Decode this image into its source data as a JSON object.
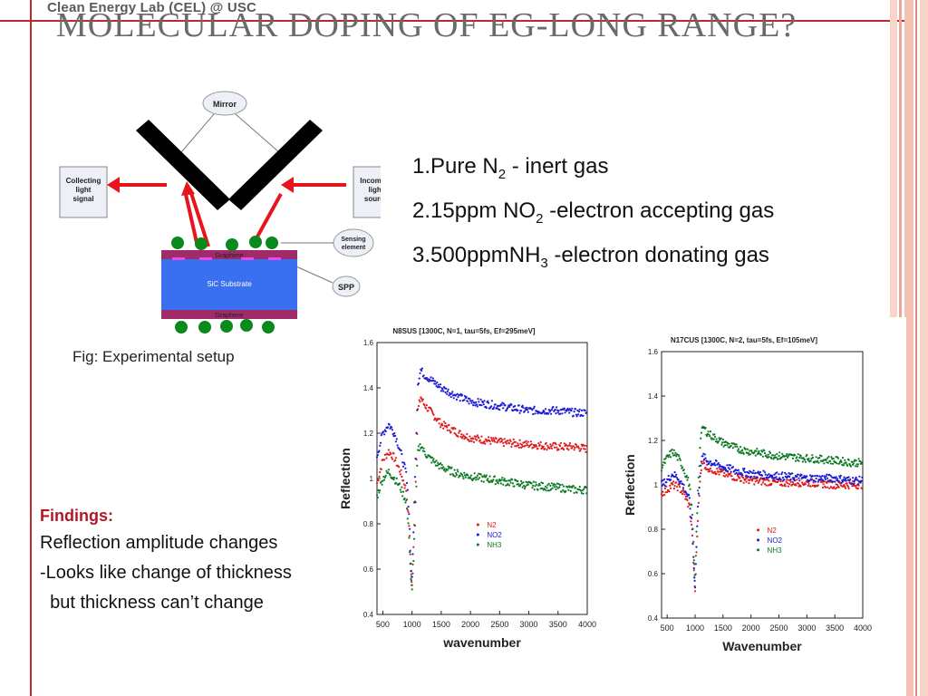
{
  "slide": {
    "header_note": "Clean Energy Lab (CEL) @ USC",
    "title": "MOLECULAR DOPING  OF EG-LONG RANGE?",
    "figure_caption": "Fig: Experimental setup",
    "colors": {
      "accent": "#c0272d",
      "stripe_light": "#f7d5c9"
    }
  },
  "setup_diagram": {
    "mirror_label": "Mirror",
    "collecting_label": [
      "Collecting",
      "light",
      "signal"
    ],
    "incoming_label": [
      "Incoming",
      "light",
      "source"
    ],
    "sensing_label": [
      "Sensing",
      "element"
    ],
    "spp_label": "SPP",
    "graphene_top": "Graphene",
    "graphene_bottom": "Graphene",
    "substrate": "SiC Substrate",
    "colors": {
      "beam": "#e8141b",
      "mirror": "#000000",
      "substrate": "#3a6ff0",
      "graphene": "#a02a6a",
      "molecule": "#0a8a1c"
    }
  },
  "gases": [
    {
      "num": "1.",
      "pre": "Pure N",
      "sub": "2",
      "post": " - inert gas"
    },
    {
      "num": "2.",
      "pre": "15ppm NO",
      "sub": "2",
      "post": " -electron accepting gas"
    },
    {
      "num": "3.",
      "pre": "500ppmNH",
      "sub": "3",
      "post": " -electron donating gas"
    }
  ],
  "findings": {
    "heading": "Findings:",
    "lines": [
      "Reflection amplitude changes",
      "-Looks like change of thickness",
      "  but thickness can’t change"
    ]
  },
  "chart_data": [
    {
      "type": "scatter",
      "title": "N8SUS [1300C, N=1, tau=5fs, Ef=295meV]",
      "xlabel": "wavenumber",
      "ylabel": "Reflection",
      "xlim": [
        400,
        4000
      ],
      "ylim": [
        0.4,
        1.6
      ],
      "xticks": [
        500,
        1000,
        1500,
        2000,
        2500,
        3000,
        3500,
        4000
      ],
      "yticks": [
        0.4,
        0.6,
        0.8,
        1,
        1.2,
        1.4,
        1.6
      ],
      "legend_position": "right-center",
      "series": [
        {
          "name": "N2",
          "color": "#e01b1b",
          "x": [
            400,
            500,
            600,
            700,
            800,
            900,
            950,
            980,
            1000,
            1050,
            1100,
            1150,
            1200,
            1300,
            1500,
            1800,
            2000,
            2500,
            3000,
            3500,
            3800,
            4000
          ],
          "y": [
            0.98,
            1.08,
            1.12,
            1.09,
            1.03,
            0.95,
            0.8,
            0.6,
            0.52,
            0.9,
            1.3,
            1.36,
            1.33,
            1.3,
            1.24,
            1.2,
            1.18,
            1.16,
            1.15,
            1.14,
            1.14,
            1.13
          ]
        },
        {
          "name": "NO2",
          "color": "#1a1ad6",
          "x": [
            400,
            500,
            600,
            700,
            800,
            900,
            950,
            980,
            1000,
            1050,
            1100,
            1150,
            1200,
            1300,
            1500,
            1800,
            2000,
            2500,
            3000,
            3500,
            3800,
            4000
          ],
          "y": [
            1.1,
            1.2,
            1.24,
            1.2,
            1.12,
            1.02,
            0.85,
            0.62,
            0.55,
            1.0,
            1.42,
            1.48,
            1.46,
            1.44,
            1.4,
            1.36,
            1.34,
            1.32,
            1.3,
            1.3,
            1.29,
            1.29
          ]
        },
        {
          "name": "NH3",
          "color": "#0d7a24",
          "x": [
            400,
            500,
            600,
            700,
            800,
            900,
            950,
            980,
            1000,
            1050,
            1100,
            1150,
            1200,
            1300,
            1500,
            1800,
            2000,
            2500,
            3000,
            3500,
            3800,
            4000
          ],
          "y": [
            0.92,
            1.0,
            1.03,
            1.0,
            0.96,
            0.9,
            0.75,
            0.56,
            0.5,
            0.8,
            1.12,
            1.15,
            1.12,
            1.09,
            1.05,
            1.02,
            1.01,
            0.99,
            0.97,
            0.96,
            0.95,
            0.95
          ]
        }
      ]
    },
    {
      "type": "scatter",
      "title": "N17CUS [1300C, N=2, tau=5fs, Ef=105meV]",
      "xlabel": "Wavenumber",
      "ylabel": "Reflection",
      "xlim": [
        400,
        4000
      ],
      "ylim": [
        0.4,
        1.6
      ],
      "xticks": [
        500,
        1000,
        1500,
        2000,
        2500,
        3000,
        3500,
        4000
      ],
      "yticks": [
        0.4,
        0.6,
        0.8,
        1,
        1.2,
        1.4,
        1.6
      ],
      "legend_position": "right-center",
      "series": [
        {
          "name": "N2",
          "color": "#e01b1b",
          "x": [
            400,
            500,
            600,
            700,
            800,
            900,
            950,
            980,
            1000,
            1050,
            1100,
            1150,
            1200,
            1300,
            1500,
            1800,
            2000,
            2500,
            3000,
            3500,
            3800,
            4000
          ],
          "y": [
            0.96,
            0.98,
            1.0,
            0.99,
            0.96,
            0.9,
            0.78,
            0.6,
            0.52,
            0.85,
            1.07,
            1.1,
            1.08,
            1.07,
            1.05,
            1.03,
            1.02,
            1.01,
            1.01,
            1.0,
            1.0,
            1.0
          ]
        },
        {
          "name": "NO2",
          "color": "#1a1ad6",
          "x": [
            400,
            500,
            600,
            700,
            800,
            900,
            950,
            980,
            1000,
            1050,
            1100,
            1150,
            1200,
            1300,
            1500,
            1800,
            2000,
            2500,
            3000,
            3500,
            3800,
            4000
          ],
          "y": [
            1.0,
            1.02,
            1.05,
            1.03,
            0.99,
            0.93,
            0.8,
            0.62,
            0.55,
            0.9,
            1.1,
            1.13,
            1.11,
            1.1,
            1.08,
            1.06,
            1.05,
            1.04,
            1.03,
            1.03,
            1.02,
            1.02
          ]
        },
        {
          "name": "NH3",
          "color": "#0d7a24",
          "x": [
            400,
            500,
            600,
            700,
            800,
            900,
            950,
            980,
            1000,
            1050,
            1100,
            1150,
            1200,
            1300,
            1500,
            1800,
            2000,
            2500,
            3000,
            3500,
            3800,
            4000
          ],
          "y": [
            1.08,
            1.12,
            1.15,
            1.12,
            1.07,
            1.0,
            0.86,
            0.66,
            0.58,
            0.98,
            1.22,
            1.26,
            1.24,
            1.22,
            1.19,
            1.16,
            1.15,
            1.13,
            1.12,
            1.11,
            1.1,
            1.1
          ]
        }
      ]
    }
  ]
}
